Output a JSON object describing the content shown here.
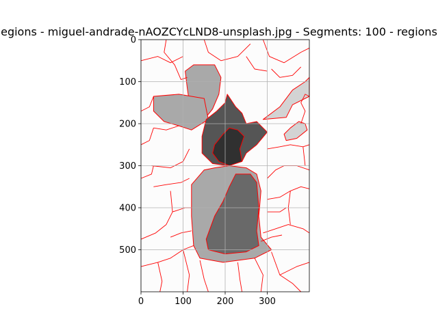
{
  "chart_data": {
    "type": "heatmap",
    "title": "egions - miguel-andrade-nAOZCYcLND8-unsplash.jpg - Segments: 100 - regions",
    "xlabel": "",
    "ylabel": "",
    "xlim": [
      0,
      400
    ],
    "ylim": [
      600,
      0
    ],
    "x_ticks": [
      0,
      100,
      200,
      300
    ],
    "y_ticks": [
      0,
      100,
      200,
      300,
      400,
      500
    ],
    "grid": true,
    "colors": {
      "background": "#fcfcfc",
      "light_gray": "#d3d3d3",
      "mid_gray": "#a9a9a9",
      "dark_gray": "#696969",
      "darker_gray": "#555555",
      "darkest_gray": "#303030",
      "boundary": "#ff0000"
    },
    "regions": [
      {
        "shade": "light_gray",
        "points": [
          [
            290,
            190
          ],
          [
            330,
            160
          ],
          [
            360,
            120
          ],
          [
            390,
            100
          ],
          [
            400,
            90
          ],
          [
            400,
            135
          ],
          [
            360,
            155
          ],
          [
            345,
            185
          ]
        ]
      },
      {
        "shade": "light_gray",
        "points": [
          [
            340,
            225
          ],
          [
            355,
            210
          ],
          [
            375,
            195
          ],
          [
            390,
            200
          ],
          [
            395,
            215
          ],
          [
            370,
            235
          ],
          [
            345,
            240
          ]
        ]
      },
      {
        "shade": "mid_gray",
        "points": [
          [
            105,
            75
          ],
          [
            125,
            60
          ],
          [
            175,
            60
          ],
          [
            190,
            90
          ],
          [
            185,
            130
          ],
          [
            170,
            165
          ],
          [
            150,
            190
          ],
          [
            130,
            175
          ],
          [
            115,
            150
          ],
          [
            110,
            115
          ]
        ]
      },
      {
        "shade": "mid_gray",
        "points": [
          [
            30,
            135
          ],
          [
            90,
            130
          ],
          [
            150,
            140
          ],
          [
            160,
            190
          ],
          [
            120,
            215
          ],
          [
            90,
            205
          ],
          [
            55,
            195
          ],
          [
            30,
            170
          ]
        ]
      },
      {
        "shade": "mid_gray",
        "points": [
          [
            120,
            345
          ],
          [
            150,
            310
          ],
          [
            175,
            305
          ],
          [
            210,
            300
          ],
          [
            250,
            305
          ],
          [
            275,
            320
          ],
          [
            285,
            360
          ],
          [
            280,
            420
          ],
          [
            285,
            470
          ],
          [
            310,
            500
          ],
          [
            270,
            520
          ],
          [
            195,
            530
          ],
          [
            140,
            520
          ],
          [
            125,
            490
          ],
          [
            120,
            420
          ]
        ]
      },
      {
        "shade": "dark_gray",
        "points": [
          [
            155,
            475
          ],
          [
            175,
            420
          ],
          [
            195,
            385
          ],
          [
            210,
            350
          ],
          [
            225,
            320
          ],
          [
            260,
            320
          ],
          [
            275,
            340
          ],
          [
            280,
            400
          ],
          [
            275,
            455
          ],
          [
            280,
            490
          ],
          [
            250,
            505
          ],
          [
            200,
            510
          ],
          [
            160,
            500
          ]
        ]
      },
      {
        "shade": "darker_gray",
        "points": [
          [
            155,
            190
          ],
          [
            180,
            170
          ],
          [
            200,
            150
          ],
          [
            205,
            130
          ],
          [
            225,
            160
          ],
          [
            240,
            175
          ],
          [
            250,
            200
          ],
          [
            275,
            195
          ],
          [
            300,
            220
          ],
          [
            275,
            250
          ],
          [
            250,
            270
          ],
          [
            240,
            290
          ],
          [
            205,
            300
          ],
          [
            170,
            295
          ],
          [
            145,
            270
          ],
          [
            145,
            230
          ]
        ]
      },
      {
        "shade": "darkest_gray",
        "points": [
          [
            175,
            250
          ],
          [
            195,
            225
          ],
          [
            210,
            210
          ],
          [
            230,
            215
          ],
          [
            245,
            230
          ],
          [
            235,
            260
          ],
          [
            240,
            290
          ],
          [
            210,
            300
          ],
          [
            185,
            290
          ],
          [
            170,
            270
          ]
        ]
      }
    ],
    "boundaries": [
      [
        [
          0,
          50
        ],
        [
          40,
          40
        ],
        [
          70,
          55
        ],
        [
          100,
          40
        ]
      ],
      [
        [
          60,
          0
        ],
        [
          55,
          30
        ],
        [
          80,
          60
        ],
        [
          95,
          95
        ],
        [
          110,
          90
        ]
      ],
      [
        [
          150,
          0
        ],
        [
          160,
          30
        ],
        [
          190,
          50
        ],
        [
          230,
          40
        ],
        [
          260,
          10
        ]
      ],
      [
        [
          250,
          40
        ],
        [
          270,
          70
        ],
        [
          300,
          75
        ]
      ],
      [
        [
          290,
          0
        ],
        [
          305,
          40
        ],
        [
          340,
          55
        ],
        [
          380,
          30
        ],
        [
          400,
          20
        ]
      ],
      [
        [
          310,
          70
        ],
        [
          330,
          90
        ],
        [
          360,
          85
        ],
        [
          380,
          65
        ]
      ],
      [
        [
          0,
          170
        ],
        [
          20,
          160
        ],
        [
          30,
          135
        ]
      ],
      [
        [
          0,
          250
        ],
        [
          20,
          240
        ],
        [
          30,
          210
        ]
      ],
      [
        [
          30,
          210
        ],
        [
          60,
          215
        ],
        [
          90,
          205
        ]
      ],
      [
        [
          25,
          300
        ],
        [
          70,
          305
        ],
        [
          100,
          290
        ],
        [
          115,
          260
        ]
      ],
      [
        [
          0,
          330
        ],
        [
          25,
          320
        ],
        [
          30,
          300
        ]
      ],
      [
        [
          30,
          350
        ],
        [
          60,
          345
        ],
        [
          95,
          340
        ],
        [
          115,
          330
        ]
      ],
      [
        [
          0,
          475
        ],
        [
          35,
          460
        ],
        [
          60,
          440
        ],
        [
          75,
          410
        ],
        [
          70,
          360
        ]
      ],
      [
        [
          75,
          410
        ],
        [
          105,
          400
        ],
        [
          120,
          400
        ]
      ],
      [
        [
          70,
          470
        ],
        [
          95,
          460
        ],
        [
          120,
          455
        ]
      ],
      [
        [
          0,
          540
        ],
        [
          40,
          530
        ],
        [
          70,
          520
        ],
        [
          100,
          500
        ],
        [
          125,
          490
        ]
      ],
      [
        [
          40,
          530
        ],
        [
          50,
          575
        ],
        [
          45,
          600
        ]
      ],
      [
        [
          100,
          500
        ],
        [
          115,
          560
        ],
        [
          110,
          600
        ]
      ],
      [
        [
          140,
          525
        ],
        [
          150,
          570
        ],
        [
          160,
          600
        ]
      ],
      [
        [
          230,
          530
        ],
        [
          235,
          570
        ],
        [
          240,
          600
        ]
      ],
      [
        [
          270,
          520
        ],
        [
          290,
          560
        ],
        [
          285,
          600
        ]
      ],
      [
        [
          310,
          505
        ],
        [
          330,
          560
        ],
        [
          360,
          580
        ],
        [
          380,
          600
        ]
      ],
      [
        [
          330,
          560
        ],
        [
          370,
          540
        ],
        [
          400,
          530
        ]
      ],
      [
        [
          290,
          460
        ],
        [
          320,
          450
        ],
        [
          350,
          440
        ],
        [
          385,
          450
        ],
        [
          400,
          460
        ]
      ],
      [
        [
          300,
          380
        ],
        [
          330,
          375
        ],
        [
          355,
          360
        ],
        [
          380,
          350
        ],
        [
          400,
          355
        ]
      ],
      [
        [
          300,
          330
        ],
        [
          320,
          310
        ],
        [
          340,
          300
        ],
        [
          370,
          300
        ],
        [
          400,
          310
        ]
      ],
      [
        [
          300,
          260
        ],
        [
          330,
          255
        ],
        [
          355,
          250
        ],
        [
          385,
          255
        ],
        [
          400,
          250
        ]
      ],
      [
        [
          385,
          255
        ],
        [
          390,
          300
        ]
      ],
      [
        [
          355,
          360
        ],
        [
          350,
          400
        ],
        [
          355,
          440
        ]
      ],
      [
        [
          380,
          200
        ],
        [
          390,
          170
        ],
        [
          380,
          150
        ],
        [
          390,
          130
        ],
        [
          400,
          135
        ]
      ],
      [
        [
          300,
          410
        ],
        [
          330,
          410
        ],
        [
          345,
          400
        ]
      ],
      [
        [
          285,
          480
        ],
        [
          310,
          470
        ],
        [
          335,
          465
        ]
      ]
    ]
  }
}
